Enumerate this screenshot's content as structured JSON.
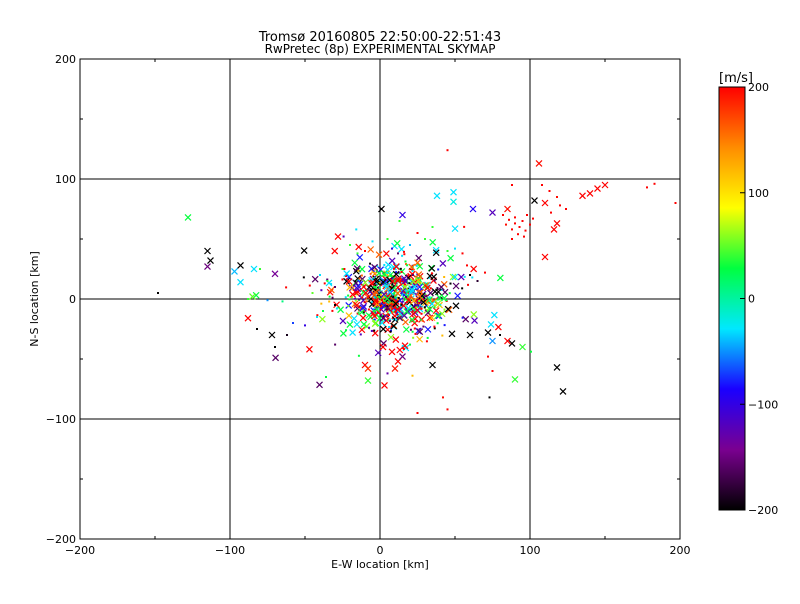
{
  "chart_data": {
    "type": "scatter",
    "title": "Tromsø 20160805 22:50:00-22:51:43",
    "subtitle": "RwPretec (8p) EXPERIMENTAL SKYMAP",
    "xlabel": "E-W location [km]",
    "ylabel": "N-S location [km]",
    "xlim": [
      -200,
      200
    ],
    "ylim": [
      -200,
      200
    ],
    "xticks": [
      -200,
      -100,
      0,
      100,
      200
    ],
    "yticks": [
      -200,
      -100,
      0,
      100,
      200
    ],
    "x_tick_labels": [
      "−200",
      "−100",
      "0",
      "100",
      "200"
    ],
    "y_tick_labels": [
      "−200",
      "−100",
      "0",
      "100",
      "200"
    ],
    "grid": true,
    "colorbar": {
      "label": "[m/s]",
      "range": [
        -200,
        200
      ],
      "ticks": [
        200,
        100,
        0,
        -100,
        -200
      ],
      "tick_labels": [
        "200",
        "100",
        "0",
        "−100",
        "−200"
      ],
      "colormap": "black-purple-blue-cyan-green-yellow-red",
      "stops": [
        "#000000",
        "#7a0090",
        "#1a00ff",
        "#00e8ff",
        "#00ff40",
        "#ffff00",
        "#ff8c00",
        "#ff0000"
      ]
    },
    "points": [
      {
        "x": 45,
        "y": 124,
        "v": 200,
        "m": "dot"
      },
      {
        "x": 106,
        "y": 113,
        "v": 195,
        "m": "x"
      },
      {
        "x": 150,
        "y": 95,
        "v": 200,
        "m": "x"
      },
      {
        "x": 145,
        "y": 92,
        "v": 200,
        "m": "x"
      },
      {
        "x": 140,
        "y": 88,
        "v": 200,
        "m": "x"
      },
      {
        "x": 135,
        "y": 86,
        "v": 200,
        "m": "x"
      },
      {
        "x": 183,
        "y": 96,
        "v": 200,
        "m": "dot"
      },
      {
        "x": 178,
        "y": 93,
        "v": 200,
        "m": "dot"
      },
      {
        "x": 197,
        "y": 80,
        "v": 200,
        "m": "dot"
      },
      {
        "x": 88,
        "y": 95,
        "v": 200,
        "m": "dot"
      },
      {
        "x": 108,
        "y": 95,
        "v": 200,
        "m": "dot"
      },
      {
        "x": 113,
        "y": 90,
        "v": 200,
        "m": "dot"
      },
      {
        "x": 118,
        "y": 85,
        "v": 195,
        "m": "dot"
      },
      {
        "x": 103,
        "y": 82,
        "v": -200,
        "m": "x"
      },
      {
        "x": 110,
        "y": 80,
        "v": 200,
        "m": "x"
      },
      {
        "x": 120,
        "y": 78,
        "v": 200,
        "m": "dot"
      },
      {
        "x": 124,
        "y": 75,
        "v": 200,
        "m": "dot"
      },
      {
        "x": 114,
        "y": 72,
        "v": 200,
        "m": "dot"
      },
      {
        "x": 118,
        "y": 63,
        "v": 200,
        "m": "x"
      },
      {
        "x": 116,
        "y": 58,
        "v": 200,
        "m": "x"
      },
      {
        "x": 110,
        "y": 35,
        "v": 200,
        "m": "x"
      },
      {
        "x": 85,
        "y": 75,
        "v": 195,
        "m": "x"
      },
      {
        "x": 82,
        "y": 70,
        "v": 200,
        "m": "dot"
      },
      {
        "x": 86,
        "y": 66,
        "v": 200,
        "m": "dot"
      },
      {
        "x": 90,
        "y": 63,
        "v": 200,
        "m": "dot"
      },
      {
        "x": 93,
        "y": 60,
        "v": 200,
        "m": "dot"
      },
      {
        "x": 97,
        "y": 57,
        "v": 200,
        "m": "dot"
      },
      {
        "x": 88,
        "y": 58,
        "v": 200,
        "m": "dot"
      },
      {
        "x": 92,
        "y": 54,
        "v": 200,
        "m": "dot"
      },
      {
        "x": 96,
        "y": 52,
        "v": 200,
        "m": "dot"
      },
      {
        "x": 100,
        "y": 62,
        "v": 200,
        "m": "dot"
      },
      {
        "x": 102,
        "y": 67,
        "v": 200,
        "m": "dot"
      },
      {
        "x": 84,
        "y": 62,
        "v": 195,
        "m": "dot"
      },
      {
        "x": 90,
        "y": 68,
        "v": 200,
        "m": "dot"
      },
      {
        "x": 95,
        "y": 65,
        "v": 200,
        "m": "dot"
      },
      {
        "x": 98,
        "y": 70,
        "v": 200,
        "m": "dot"
      },
      {
        "x": 88,
        "y": 50,
        "v": 200,
        "m": "dot"
      },
      {
        "x": 75,
        "y": 72,
        "v": -120,
        "m": "x"
      },
      {
        "x": 62,
        "y": 75,
        "v": -90,
        "m": "x"
      },
      {
        "x": 38,
        "y": 86,
        "v": -30,
        "m": "x"
      },
      {
        "x": 49,
        "y": 89,
        "v": -30,
        "m": "x"
      },
      {
        "x": 49,
        "y": 81,
        "v": -20,
        "m": "x"
      },
      {
        "x": 1,
        "y": 75,
        "v": -200,
        "m": "x"
      },
      {
        "x": 15,
        "y": 70,
        "v": -100,
        "m": "x"
      },
      {
        "x": 13,
        "y": 65,
        "v": 40,
        "m": "dot"
      },
      {
        "x": -128,
        "y": 68,
        "v": 30,
        "m": "x"
      },
      {
        "x": -115,
        "y": 40,
        "v": -200,
        "m": "x"
      },
      {
        "x": -113,
        "y": 32,
        "v": -200,
        "m": "x"
      },
      {
        "x": -115,
        "y": 27,
        "v": -150,
        "m": "x"
      },
      {
        "x": -93,
        "y": 28,
        "v": -200,
        "m": "x"
      },
      {
        "x": -97,
        "y": 23,
        "v": -40,
        "m": "x"
      },
      {
        "x": -84,
        "y": 25,
        "v": -30,
        "m": "x"
      },
      {
        "x": -80,
        "y": 25,
        "v": 40,
        "m": "dot"
      },
      {
        "x": -93,
        "y": 14,
        "v": -30,
        "m": "x"
      },
      {
        "x": -70,
        "y": 21,
        "v": -140,
        "m": "x"
      },
      {
        "x": -85,
        "y": 2,
        "v": 50,
        "m": "x"
      },
      {
        "x": -88,
        "y": 0,
        "v": 40,
        "m": "dot"
      },
      {
        "x": -148,
        "y": 5,
        "v": -200,
        "m": "dot"
      },
      {
        "x": -75,
        "y": -1,
        "v": -50,
        "m": "dot"
      },
      {
        "x": -65,
        "y": -2,
        "v": 10,
        "m": "dot"
      },
      {
        "x": -88,
        "y": -16,
        "v": 200,
        "m": "x"
      },
      {
        "x": -72,
        "y": -30,
        "v": -200,
        "m": "x"
      },
      {
        "x": -70,
        "y": -40,
        "v": -200,
        "m": "dot"
      },
      {
        "x": -82,
        "y": -25,
        "v": -200,
        "m": "dot"
      },
      {
        "x": -62,
        "y": -30,
        "v": -190,
        "m": "dot"
      },
      {
        "x": -58,
        "y": -20,
        "v": -70,
        "m": "dot"
      },
      {
        "x": -50,
        "y": -22,
        "v": -100,
        "m": "dot"
      },
      {
        "x": -42,
        "y": -15,
        "v": -30,
        "m": "dot"
      },
      {
        "x": -38,
        "y": -10,
        "v": 30,
        "m": "dot"
      },
      {
        "x": -30,
        "y": 10,
        "v": -160,
        "m": "dot"
      },
      {
        "x": -35,
        "y": 15,
        "v": 40,
        "m": "dot"
      },
      {
        "x": -40,
        "y": 20,
        "v": -30,
        "m": "dot"
      },
      {
        "x": -25,
        "y": 25,
        "v": 40,
        "m": "dot"
      },
      {
        "x": -30,
        "y": -5,
        "v": -200,
        "m": "dot"
      },
      {
        "x": -45,
        "y": 5,
        "v": 50,
        "m": "dot"
      },
      {
        "x": -36,
        "y": -65,
        "v": 30,
        "m": "dot"
      },
      {
        "x": -10,
        "y": -55,
        "v": 200,
        "m": "x"
      },
      {
        "x": -8,
        "y": -58,
        "v": 180,
        "m": "x"
      },
      {
        "x": -8,
        "y": -68,
        "v": 40,
        "m": "x"
      },
      {
        "x": 3,
        "y": -72,
        "v": 200,
        "m": "x"
      },
      {
        "x": 5,
        "y": -62,
        "v": -130,
        "m": "dot"
      },
      {
        "x": 10,
        "y": -58,
        "v": 190,
        "m": "x"
      },
      {
        "x": 12,
        "y": -52,
        "v": 200,
        "m": "x"
      },
      {
        "x": 15,
        "y": -48,
        "v": -150,
        "m": "x"
      },
      {
        "x": 8,
        "y": -44,
        "v": 200,
        "m": "x"
      },
      {
        "x": 2,
        "y": -40,
        "v": 200,
        "m": "x"
      },
      {
        "x": 20,
        "y": -38,
        "v": 30,
        "m": "dot"
      },
      {
        "x": 35,
        "y": -55,
        "v": -200,
        "m": "x"
      },
      {
        "x": 25,
        "y": -95,
        "v": 200,
        "m": "dot"
      },
      {
        "x": 45,
        "y": -92,
        "v": 200,
        "m": "dot"
      },
      {
        "x": 42,
        "y": -82,
        "v": 195,
        "m": "dot"
      },
      {
        "x": 73,
        "y": -82,
        "v": -200,
        "m": "dot"
      },
      {
        "x": 90,
        "y": -67,
        "v": 40,
        "m": "x"
      },
      {
        "x": 118,
        "y": -57,
        "v": -200,
        "m": "x"
      },
      {
        "x": 122,
        "y": -77,
        "v": -200,
        "m": "x"
      },
      {
        "x": 48,
        "y": -29,
        "v": -200,
        "m": "x"
      },
      {
        "x": 60,
        "y": -30,
        "v": -200,
        "m": "x"
      },
      {
        "x": 72,
        "y": -28,
        "v": -200,
        "m": "x"
      },
      {
        "x": 75,
        "y": -35,
        "v": -50,
        "m": "x"
      },
      {
        "x": 80,
        "y": -30,
        "v": -200,
        "m": "dot"
      },
      {
        "x": 85,
        "y": -35,
        "v": 200,
        "m": "x"
      },
      {
        "x": 88,
        "y": -37,
        "v": -200,
        "m": "x"
      },
      {
        "x": 95,
        "y": -40,
        "v": 40,
        "m": "x"
      },
      {
        "x": 72,
        "y": -48,
        "v": 200,
        "m": "dot"
      },
      {
        "x": 75,
        "y": -60,
        "v": 200,
        "m": "dot"
      },
      {
        "x": 60,
        "y": 20,
        "v": -200,
        "m": "dot"
      },
      {
        "x": 65,
        "y": 15,
        "v": -180,
        "m": "dot"
      },
      {
        "x": 58,
        "y": 28,
        "v": 200,
        "m": "dot"
      },
      {
        "x": 70,
        "y": 22,
        "v": 200,
        "m": "dot"
      },
      {
        "x": 55,
        "y": 38,
        "v": 200,
        "m": "dot"
      },
      {
        "x": 45,
        "y": 40,
        "v": 40,
        "m": "dot"
      },
      {
        "x": 50,
        "y": 42,
        "v": -30,
        "m": "dot"
      },
      {
        "x": 30,
        "y": 50,
        "v": 40,
        "m": "dot"
      },
      {
        "x": 25,
        "y": 55,
        "v": 200,
        "m": "dot"
      },
      {
        "x": 35,
        "y": 60,
        "v": 40,
        "m": "dot"
      },
      {
        "x": 20,
        "y": 45,
        "v": -40,
        "m": "dot"
      },
      {
        "x": -28,
        "y": 52,
        "v": 200,
        "m": "x"
      },
      {
        "x": -20,
        "y": 45,
        "v": 40,
        "m": "dot"
      },
      {
        "x": -15,
        "y": 38,
        "v": 40,
        "m": "dot"
      },
      {
        "x": -10,
        "y": 40,
        "v": 200,
        "m": "dot"
      },
      {
        "x": -5,
        "y": 48,
        "v": -30,
        "m": "dot"
      },
      {
        "x": 5,
        "y": 50,
        "v": 40,
        "m": "dot"
      },
      {
        "x": 8,
        "y": 42,
        "v": -100,
        "m": "dot"
      },
      {
        "x": 12,
        "y": 38,
        "v": -160,
        "m": "dot"
      }
    ],
    "cluster": {
      "center": [
        10,
        2
      ],
      "spread": [
        18,
        14
      ],
      "count": 650,
      "seed": 20160805,
      "cross_fraction": 0.55,
      "value_mix": [
        {
          "v": 200,
          "w": 0.22
        },
        {
          "v": 160,
          "w": 0.06
        },
        {
          "v": 120,
          "w": 0.05
        },
        {
          "v": 60,
          "w": 0.08
        },
        {
          "v": 30,
          "w": 0.16
        },
        {
          "v": -30,
          "w": 0.12
        },
        {
          "v": -80,
          "w": 0.06
        },
        {
          "v": -120,
          "w": 0.07
        },
        {
          "v": -160,
          "w": 0.06
        },
        {
          "v": -200,
          "w": 0.12
        }
      ]
    }
  }
}
